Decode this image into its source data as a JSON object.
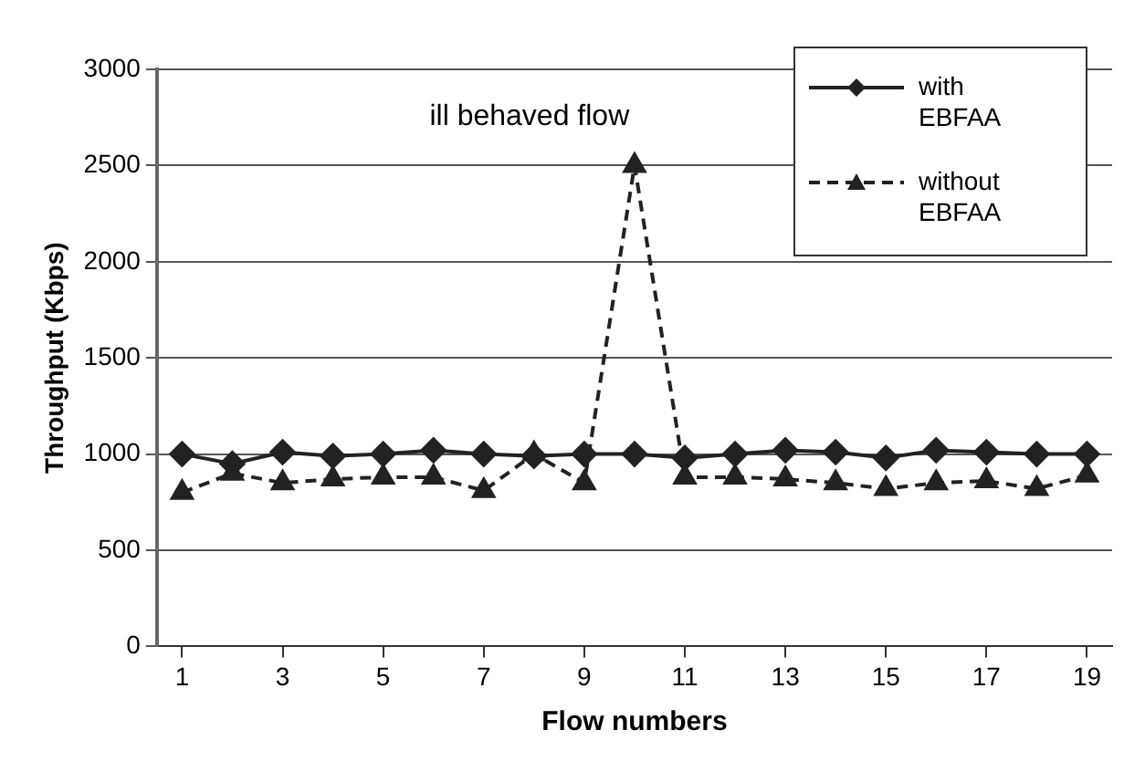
{
  "chart_data": {
    "type": "line",
    "xlabel": "Flow numbers",
    "ylabel": "Throughput (Kbps)",
    "x": [
      1,
      2,
      3,
      4,
      5,
      6,
      7,
      8,
      9,
      10,
      11,
      12,
      13,
      14,
      15,
      16,
      17,
      18,
      19
    ],
    "xlim": [
      0.5,
      19.5
    ],
    "xticks": [
      1,
      3,
      5,
      7,
      9,
      11,
      13,
      15,
      17,
      19
    ],
    "series": [
      {
        "name": "with EBFAA",
        "color": "#222222",
        "marker": "diamond",
        "line_style": "solid",
        "values": [
          1000,
          950,
          1010,
          990,
          1000,
          1020,
          1000,
          990,
          1000,
          1000,
          980,
          1000,
          1020,
          1010,
          980,
          1020,
          1010,
          1000,
          1000
        ]
      },
      {
        "name": "without EBFAA",
        "color": "#222222",
        "marker": "triangle",
        "line_style": "dashed",
        "values": [
          800,
          900,
          850,
          870,
          880,
          880,
          810,
          1000,
          850,
          2500,
          880,
          880,
          870,
          850,
          820,
          850,
          860,
          820,
          890
        ]
      }
    ],
    "ylim": [
      0,
      3000
    ],
    "yticks": [
      0,
      500,
      1000,
      1500,
      2000,
      2500,
      3000
    ],
    "grid": "y",
    "legend": "top right",
    "annotations": [
      "ill behaved flow"
    ]
  }
}
